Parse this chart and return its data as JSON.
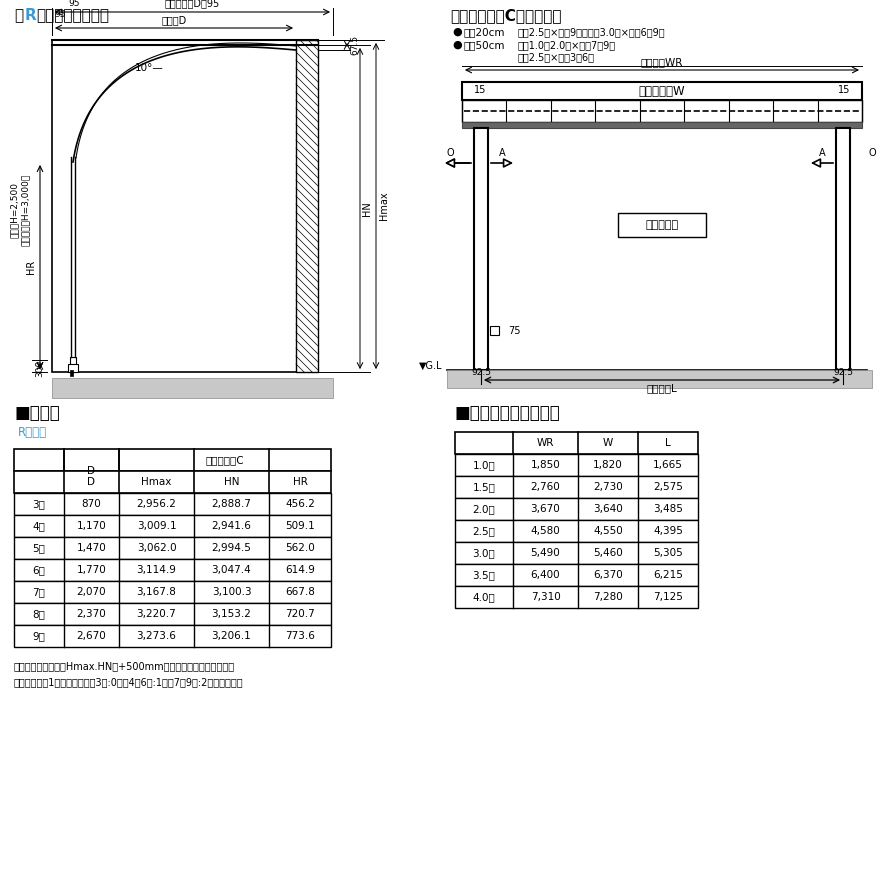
{
  "title_left_bracket": "【",
  "title_left_R": "R",
  "title_left_rest": "タイプ　側面図】",
  "title_right": "【前枠タイプC　正面図】",
  "snow_line1_bullet": "●",
  "snow_line1_label": "積雪20cm",
  "snow_line1_text": "間口2.5間×出幅9尺、間口3.0間×出幅6～9尺",
  "snow_line2_bullet": "●",
  "snow_line2_label": "積雪50cm",
  "snow_line2_text": "間口1.0～2.0間×出幅7～9尺",
  "snow_line3_text": "間口2.5間×出幅3～6尺",
  "table1_title": "■寸法表",
  "table1_sub": "Rタイプ",
  "table1_sub_color": "#3d9bd4",
  "table1_header1_span": "前枠タイプC",
  "table1_header2": [
    "",
    "D",
    "Hmax",
    "HN",
    "HR"
  ],
  "table1_rows": [
    [
      "3尺",
      "870",
      "2,956.2",
      "2,888.7",
      "456.2"
    ],
    [
      "4尺",
      "1,170",
      "3,009.1",
      "2,941.6",
      "509.1"
    ],
    [
      "5尺",
      "1,470",
      "3,062.0",
      "2,994.5",
      "562.0"
    ],
    [
      "6尺",
      "1,770",
      "3,114.9",
      "3,047.4",
      "614.9"
    ],
    [
      "7尺",
      "2,070",
      "3,167.8",
      "3,100.3",
      "667.8"
    ],
    [
      "8尺",
      "2,370",
      "3,220.7",
      "3,153.2",
      "720.7"
    ],
    [
      "9尺",
      "2,670",
      "3,273.6",
      "3,206.1",
      "773.6"
    ]
  ],
  "table2_title": "■寸法表（間口方向）",
  "table2_headers": [
    "",
    "WR",
    "W",
    "L"
  ],
  "table2_rows": [
    [
      "1.0間",
      "1,850",
      "1,820",
      "1,665"
    ],
    [
      "1.5間",
      "2,760",
      "2,730",
      "2,575"
    ],
    [
      "2.0間",
      "3,670",
      "3,640",
      "3,485"
    ],
    [
      "2.5間",
      "4,580",
      "4,550",
      "4,395"
    ],
    [
      "3.0間",
      "5,490",
      "5,460",
      "5,305"
    ],
    [
      "3.5間",
      "6,400",
      "6,370",
      "6,215"
    ],
    [
      "4.0間",
      "7,310",
      "7,280",
      "7,125"
    ]
  ],
  "footnote1": "・ロング柱の場合はHmax.HNに+500mm加算した寸法になります。",
  "footnote2": "・中桟は垂木1ピッチ当たり、3尺:0本、4～6尺:1本、7～9尺:2本入ります。",
  "bg_color": "#ffffff",
  "blue_color": "#3d9bd4",
  "black": "#000000"
}
